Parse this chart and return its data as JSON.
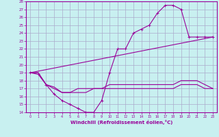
{
  "title": "",
  "xlabel": "Windchill (Refroidissement éolien,°C)",
  "bg_color": "#c8f0f0",
  "line_color": "#990099",
  "grid_color": "#aaaacc",
  "xlim": [
    -0.5,
    23.5
  ],
  "ylim": [
    14,
    28
  ],
  "yticks": [
    14,
    15,
    16,
    17,
    18,
    19,
    20,
    21,
    22,
    23,
    24,
    25,
    26,
    27,
    28
  ],
  "xticks": [
    0,
    1,
    2,
    3,
    4,
    5,
    6,
    7,
    8,
    9,
    10,
    11,
    12,
    13,
    14,
    15,
    16,
    17,
    18,
    19,
    20,
    21,
    22,
    23
  ],
  "line1_x": [
    0,
    1,
    2,
    3,
    4,
    5,
    6,
    7,
    8,
    9,
    10,
    11,
    12,
    13,
    14,
    15,
    16,
    17,
    18,
    19,
    20,
    21,
    22,
    23
  ],
  "line1_y": [
    19,
    18.8,
    17.5,
    16.3,
    15.5,
    15.0,
    14.5,
    14.0,
    14.0,
    15.5,
    19.0,
    22.0,
    22.0,
    24.0,
    24.5,
    25.0,
    26.5,
    27.5,
    27.5,
    27.0,
    23.5,
    23.5,
    23.5,
    23.5
  ],
  "line2_x": [
    0,
    1,
    2,
    3,
    4,
    5,
    6,
    7,
    8,
    9,
    10,
    11,
    12,
    13,
    14,
    15,
    16,
    17,
    18,
    19,
    20,
    21,
    22,
    23
  ],
  "line2_y": [
    19.0,
    19.0,
    17.5,
    17.2,
    16.5,
    16.5,
    16.5,
    16.5,
    17.0,
    17.0,
    17.5,
    17.5,
    17.5,
    17.5,
    17.5,
    17.5,
    17.5,
    17.5,
    17.5,
    18.0,
    18.0,
    18.0,
    17.5,
    17.0
  ],
  "line3_x": [
    0,
    1,
    2,
    3,
    4,
    5,
    6,
    7,
    8,
    9,
    10,
    11,
    12,
    13,
    14,
    15,
    16,
    17,
    18,
    19,
    20,
    21,
    22,
    23
  ],
  "line3_y": [
    19.0,
    19.0,
    17.5,
    17.0,
    16.5,
    16.5,
    17.0,
    17.0,
    17.0,
    17.0,
    17.0,
    17.0,
    17.0,
    17.0,
    17.0,
    17.0,
    17.0,
    17.0,
    17.0,
    17.5,
    17.5,
    17.5,
    17.0,
    17.0
  ],
  "line4_x": [
    0,
    23
  ],
  "line4_y": [
    19.0,
    23.5
  ]
}
